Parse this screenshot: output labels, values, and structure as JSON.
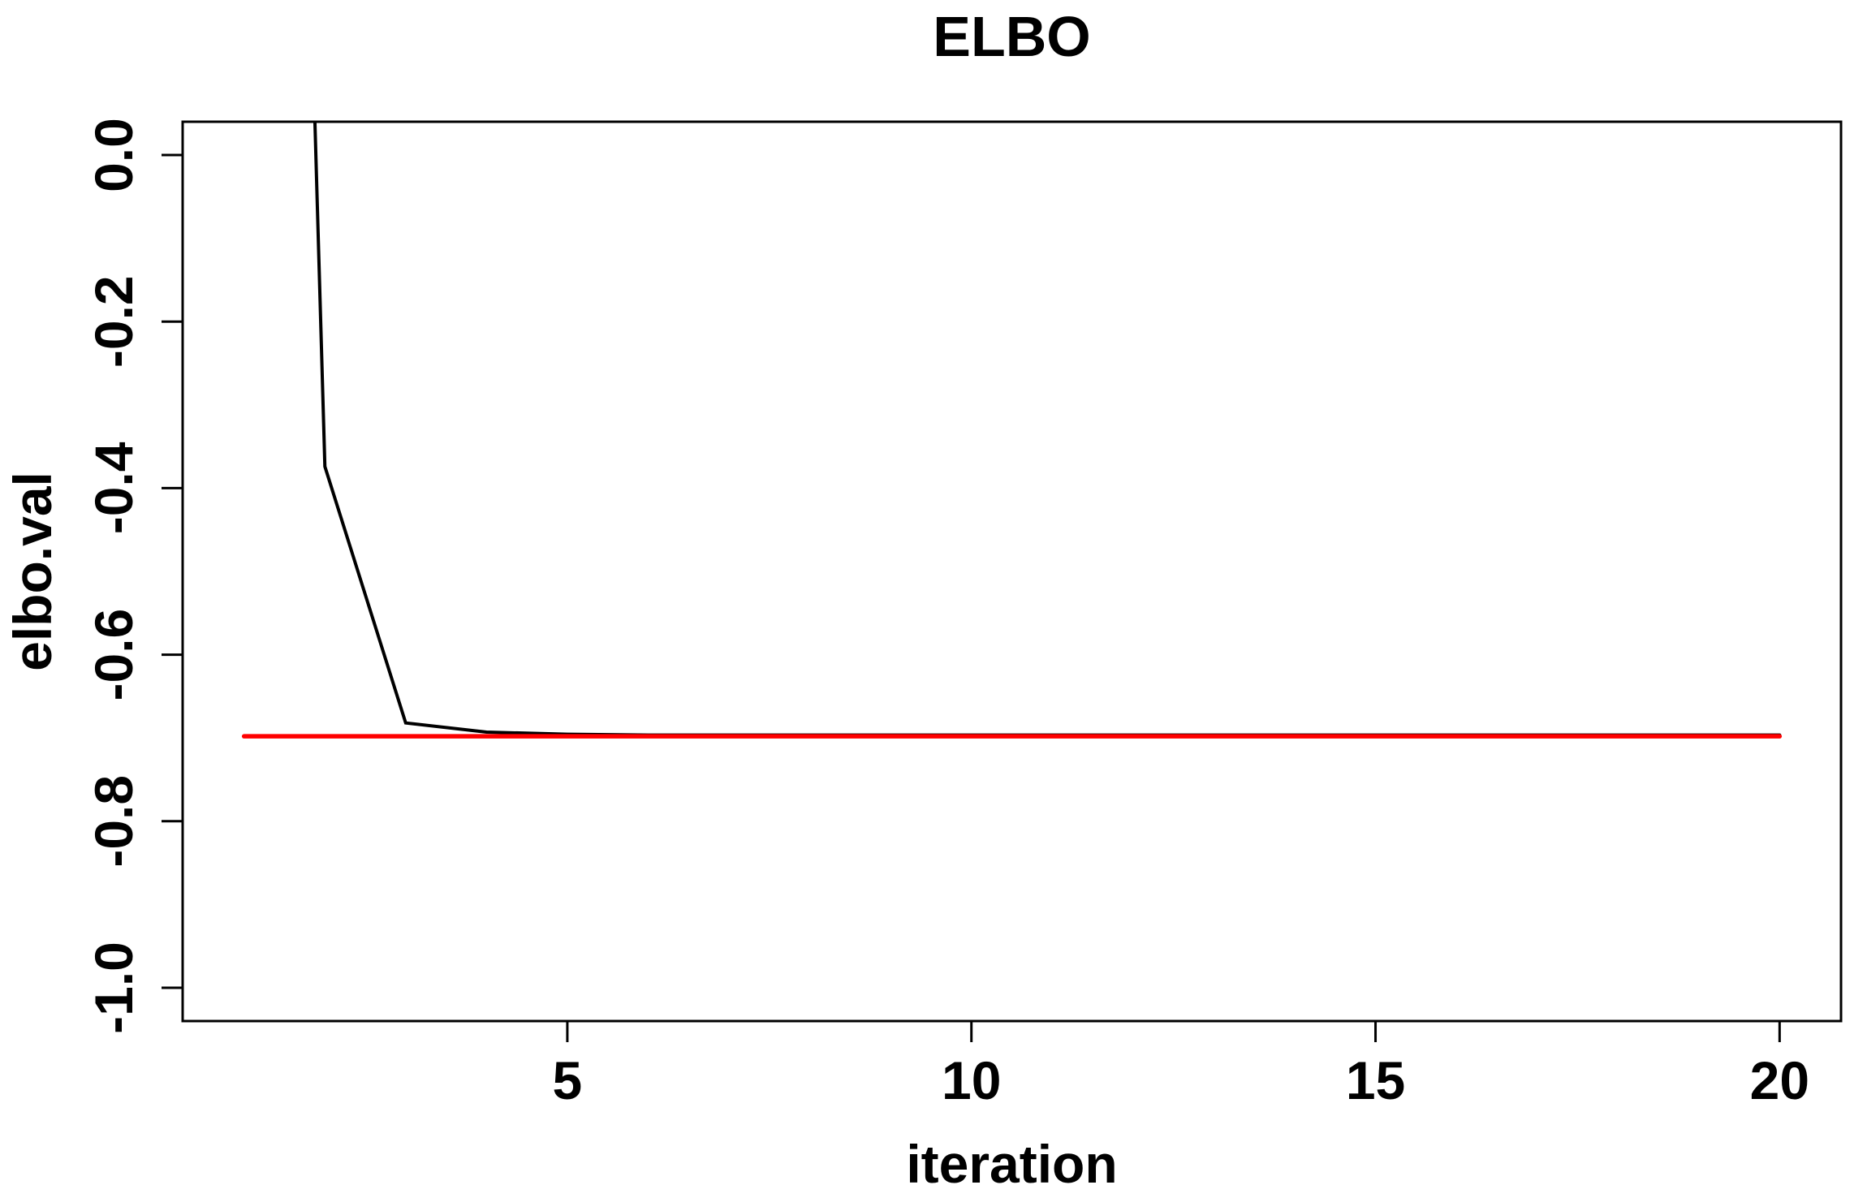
{
  "figure": {
    "background_color": "#FFFFFF",
    "axis_color": "#000000",
    "text_color": "#000000"
  },
  "chart_data": {
    "type": "line",
    "title": "ELBO",
    "xlabel": "iteration",
    "ylabel": "elbo.val",
    "xlim": [
      0.24,
      20.76
    ],
    "ylim": [
      -1.04,
      0.04
    ],
    "x_ticks": [
      5,
      10,
      15,
      20
    ],
    "x_tick_labels": [
      "5",
      "10",
      "15",
      "20"
    ],
    "y_ticks": [
      0.0,
      -0.2,
      -0.4,
      -0.6,
      -0.8,
      -1.0
    ],
    "y_tick_labels": [
      "0.0",
      "-0.2",
      "-0.4",
      "-0.6",
      "-0.8",
      "-1.0"
    ],
    "grid": false,
    "legend": null,
    "series": [
      {
        "name": "elbo.val",
        "color": "#000000",
        "x": [
          1,
          2,
          3,
          4,
          5,
          6,
          7,
          8,
          9,
          10,
          11,
          12,
          13,
          14,
          15,
          16,
          17,
          18,
          19,
          20
        ],
        "y": [
          2.98,
          -0.374,
          -0.682,
          -0.693,
          -0.6955,
          -0.6965,
          -0.6965,
          -0.6965,
          -0.6965,
          -0.6965,
          -0.6965,
          -0.6965,
          -0.6965,
          -0.6965,
          -0.6965,
          -0.6965,
          -0.6965,
          -0.6965,
          -0.6965,
          -0.6965
        ]
      },
      {
        "name": "converged-reference-line",
        "color": "#FF0000",
        "x": [
          1,
          20
        ],
        "y": [
          -0.698,
          -0.698
        ]
      }
    ],
    "annotations": [
      "First ELBO value lies above the visible y-range; the black line is clipped at the top plot border near x = 1.9.",
      "Black ELBO trace converges onto the red horizontal reference line at about -0.70 by iteration 4-5."
    ]
  }
}
